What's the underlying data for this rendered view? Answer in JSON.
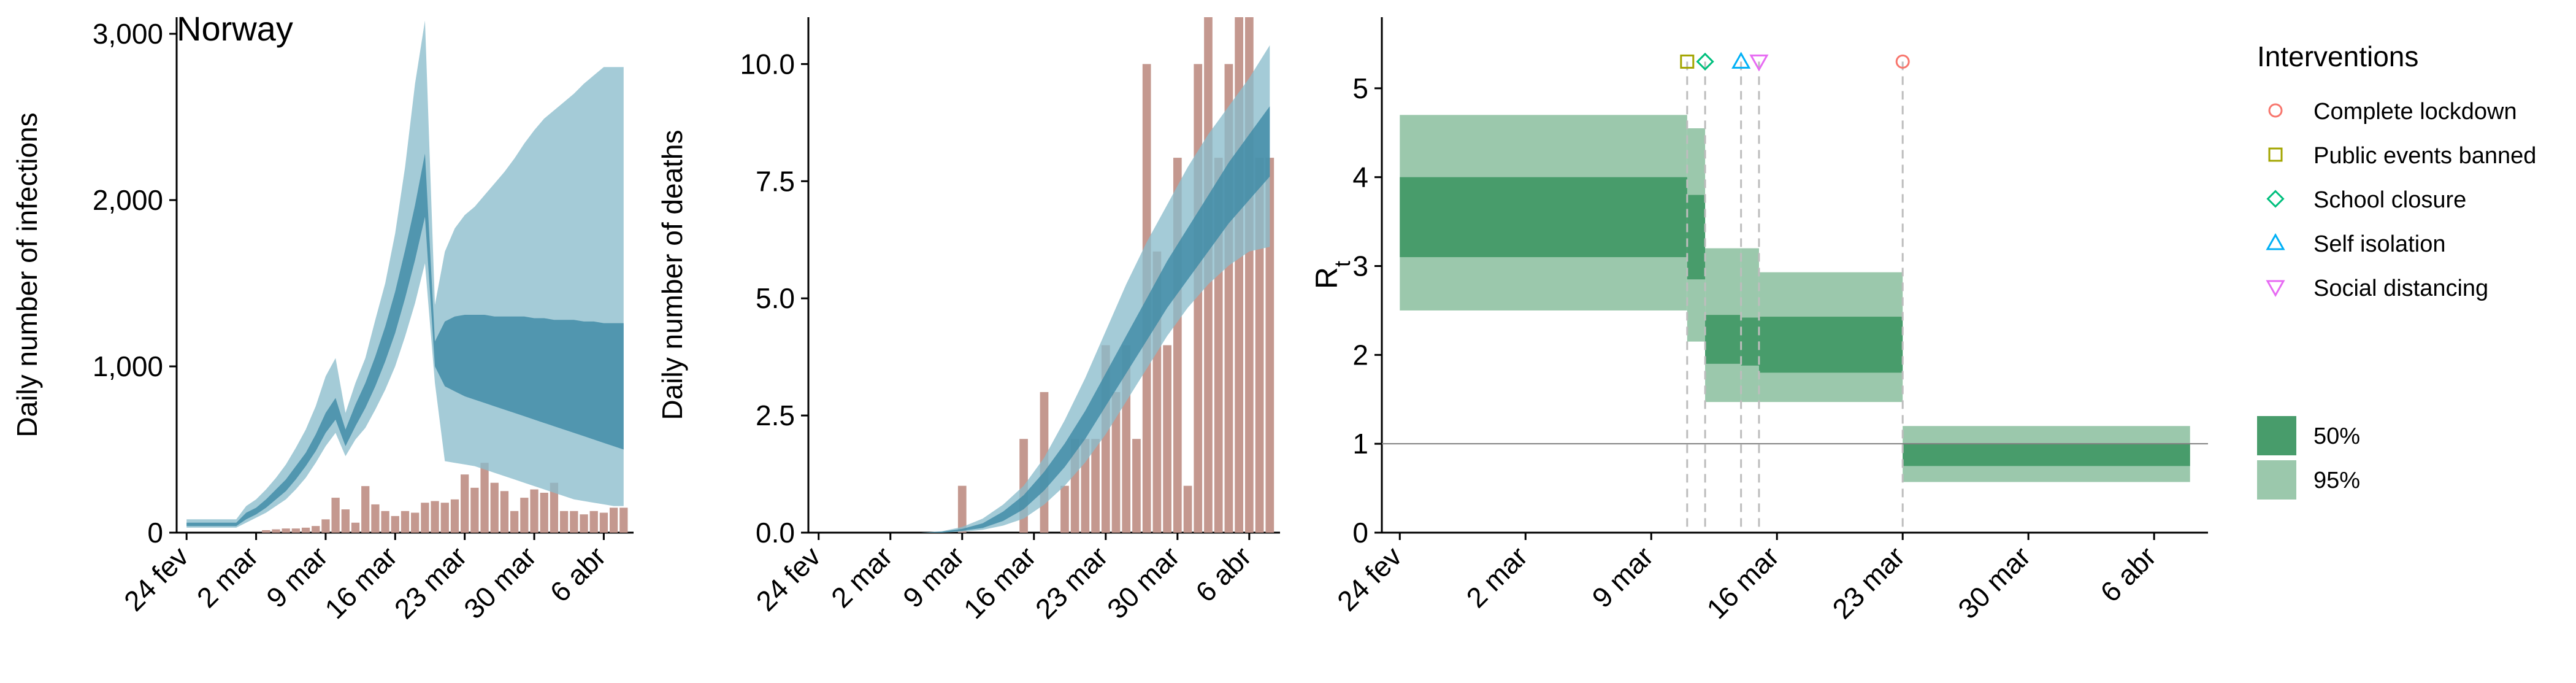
{
  "title": "Norway",
  "x_tick_labels": [
    "24 fev",
    "2 mar",
    "9 mar",
    "16 mar",
    "23 mar",
    "30 mar",
    "6 abr"
  ],
  "colors": {
    "blue_band95": "#8bbccc",
    "blue_band50": "#3e8aa6",
    "blue_mean": "#2b7593",
    "bar": "#c4988f",
    "green_band95": "#9bc8ac",
    "green_band50": "#489c6b",
    "marker_complete_lockdown": "#f8766d",
    "marker_public_events": "#a3a500",
    "marker_school_closure": "#00bf7d",
    "marker_self_isolation": "#00b0f6",
    "marker_social_distancing": "#e76bf3",
    "axis": "#000000",
    "dashed": "#bdbdbd",
    "refline": "#7f7f7f"
  },
  "legend": {
    "title": "Interventions",
    "items": [
      {
        "label": "Complete lockdown",
        "icon": "circle-icon",
        "color_key": "marker_complete_lockdown"
      },
      {
        "label": "Public events banned",
        "icon": "square-icon",
        "color_key": "marker_public_events"
      },
      {
        "label": "School closure",
        "icon": "diamond-icon",
        "color_key": "marker_school_closure"
      },
      {
        "label": "Self isolation",
        "icon": "triangle-up-icon",
        "color_key": "marker_self_isolation"
      },
      {
        "label": "Social distancing",
        "icon": "triangle-down-icon",
        "color_key": "marker_social_distancing"
      }
    ],
    "bands": [
      {
        "label": "50%",
        "color_key": "green_band50"
      },
      {
        "label": "95%",
        "color_key": "green_band95"
      }
    ]
  },
  "chart_data": [
    {
      "id": "infections",
      "type": "area",
      "title": "Norway",
      "ylabel": "Daily number of infections",
      "xlabel": "",
      "x_range_days": [
        -1,
        45
      ],
      "ylim": [
        0,
        3100
      ],
      "y_ticks": [
        0,
        1000,
        2000,
        3000
      ],
      "y_tick_labels": [
        "0",
        "1,000",
        "2,000",
        "3,000"
      ],
      "x_day_index_note_free": true,
      "bars": {
        "days": [
          8,
          9,
          10,
          11,
          12,
          13,
          14,
          15,
          16,
          17,
          18,
          19,
          20,
          21,
          22,
          23,
          24,
          25,
          26,
          27,
          28,
          29,
          30,
          31,
          32,
          33,
          34,
          35,
          36,
          37,
          38,
          39,
          40,
          41,
          42,
          43,
          44
        ],
        "values": [
          15,
          20,
          25,
          25,
          30,
          40,
          80,
          210,
          140,
          60,
          280,
          170,
          130,
          100,
          130,
          120,
          180,
          190,
          180,
          200,
          350,
          270,
          420,
          300,
          250,
          130,
          210,
          260,
          240,
          300,
          130,
          130,
          110,
          130,
          120,
          150,
          150
        ]
      },
      "band95": {
        "days": [
          0,
          1,
          2,
          3,
          4,
          5,
          6,
          7,
          8,
          9,
          10,
          11,
          12,
          13,
          14,
          15,
          16,
          17,
          18,
          19,
          20,
          21,
          22,
          23,
          24,
          25,
          26,
          27,
          28,
          29,
          30,
          31,
          32,
          33,
          34,
          35,
          36,
          37,
          38,
          39,
          40,
          41,
          42,
          43,
          44
        ],
        "lower": [
          30,
          30,
          30,
          30,
          30,
          30,
          60,
          90,
          120,
          160,
          200,
          260,
          330,
          420,
          520,
          600,
          460,
          560,
          630,
          740,
          860,
          1000,
          1180,
          1380,
          1620,
          900,
          430,
          420,
          410,
          400,
          380,
          360,
          340,
          320,
          300,
          280,
          260,
          240,
          220,
          200,
          190,
          180,
          170,
          160,
          160
        ],
        "upper": [
          80,
          80,
          80,
          80,
          80,
          80,
          160,
          200,
          260,
          330,
          410,
          510,
          620,
          760,
          940,
          1050,
          720,
          900,
          1050,
          1280,
          1500,
          1800,
          2200,
          2700,
          3080,
          1370,
          1690,
          1830,
          1910,
          1960,
          2030,
          2100,
          2170,
          2250,
          2340,
          2420,
          2490,
          2540,
          2590,
          2640,
          2700,
          2750,
          2800,
          2800,
          2800
        ]
      },
      "band50": {
        "days": [
          0,
          1,
          2,
          3,
          4,
          5,
          6,
          7,
          8,
          9,
          10,
          11,
          12,
          13,
          14,
          15,
          16,
          17,
          18,
          19,
          20,
          21,
          22,
          23,
          24,
          25,
          26,
          27,
          28,
          29,
          30,
          31,
          32,
          33,
          34,
          35,
          36,
          37,
          38,
          39,
          40,
          41,
          42,
          43,
          44
        ],
        "lower": [
          40,
          40,
          40,
          40,
          40,
          40,
          80,
          110,
          150,
          200,
          250,
          320,
          400,
          490,
          600,
          680,
          520,
          640,
          750,
          880,
          1030,
          1200,
          1410,
          1640,
          1900,
          1000,
          880,
          850,
          820,
          800,
          780,
          760,
          740,
          720,
          700,
          680,
          660,
          640,
          620,
          600,
          580,
          560,
          540,
          520,
          500
        ],
        "upper": [
          60,
          60,
          60,
          60,
          60,
          60,
          120,
          150,
          200,
          260,
          320,
          400,
          480,
          590,
          720,
          810,
          620,
          770,
          900,
          1060,
          1240,
          1450,
          1700,
          1970,
          2280,
          1150,
          1270,
          1300,
          1310,
          1310,
          1310,
          1300,
          1300,
          1300,
          1300,
          1290,
          1290,
          1280,
          1280,
          1280,
          1270,
          1270,
          1260,
          1260,
          1260
        ]
      }
    },
    {
      "id": "deaths",
      "type": "area",
      "title": "",
      "ylabel": "Daily number of deaths",
      "xlabel": "",
      "x_range_days": [
        -1,
        45
      ],
      "ylim": [
        0,
        11
      ],
      "y_ticks": [
        0,
        2.5,
        5,
        7.5,
        10
      ],
      "y_tick_labels": [
        "0.0",
        "2.5",
        "5.0",
        "7.5",
        "10.0"
      ],
      "bars": {
        "days": [
          14,
          20,
          22,
          24,
          25,
          26,
          27,
          28,
          29,
          30,
          31,
          32,
          33,
          34,
          35,
          36,
          37,
          38,
          39,
          40,
          41,
          42,
          43,
          44
        ],
        "values": [
          1,
          2,
          3,
          1,
          2,
          2,
          2,
          4,
          3,
          4,
          2,
          10,
          6,
          4,
          8,
          1,
          10,
          11,
          8,
          10,
          11,
          11,
          8,
          8
        ]
      },
      "band95": {
        "days": [
          0,
          2,
          4,
          6,
          8,
          10,
          12,
          14,
          16,
          18,
          20,
          22,
          24,
          26,
          28,
          30,
          32,
          34,
          36,
          38,
          40,
          42,
          44
        ],
        "lower": [
          0,
          0,
          0,
          0,
          0,
          0,
          0,
          0.02,
          0.06,
          0.15,
          0.3,
          0.6,
          1,
          1.5,
          2.1,
          2.8,
          3.5,
          4.2,
          4.8,
          5.3,
          5.7,
          6,
          6.1
        ],
        "upper": [
          0,
          0,
          0,
          0,
          0,
          0,
          0.03,
          0.12,
          0.3,
          0.6,
          1,
          1.6,
          2.4,
          3.3,
          4.3,
          5.3,
          6.2,
          7,
          7.8,
          8.5,
          9.1,
          9.7,
          10.4
        ]
      },
      "band50": {
        "days": [
          0,
          2,
          4,
          6,
          8,
          10,
          12,
          14,
          16,
          18,
          20,
          22,
          24,
          26,
          28,
          30,
          32,
          34,
          36,
          38,
          40,
          42,
          44
        ],
        "lower": [
          0,
          0,
          0,
          0,
          0,
          0,
          0,
          0.04,
          0.1,
          0.25,
          0.5,
          0.9,
          1.4,
          2,
          2.7,
          3.4,
          4.1,
          4.8,
          5.4,
          6,
          6.6,
          7.1,
          7.6
        ],
        "upper": [
          0,
          0,
          0,
          0,
          0,
          0,
          0.02,
          0.08,
          0.2,
          0.45,
          0.8,
          1.3,
          1.9,
          2.6,
          3.4,
          4.2,
          5,
          5.8,
          6.5,
          7.2,
          7.9,
          8.5,
          9.1
        ]
      }
    },
    {
      "id": "rt",
      "type": "area",
      "title": "",
      "ylabel": "R",
      "ylabel_subscript": "t",
      "xlabel": "",
      "x_range_days": [
        -1,
        45
      ],
      "ylim": [
        0,
        5.8
      ],
      "y_ticks": [
        0,
        1,
        2,
        3,
        4,
        5
      ],
      "y_tick_labels": [
        "0",
        "1",
        "2",
        "3",
        "4",
        "5"
      ],
      "reference_line": 1,
      "segments": [
        {
          "start": 0,
          "end": 16,
          "lo95": 2.5,
          "hi95": 4.7,
          "lo50": 3.1,
          "hi50": 4.0
        },
        {
          "start": 16,
          "end": 17,
          "lo95": 2.15,
          "hi95": 4.55,
          "lo50": 2.85,
          "hi50": 3.8
        },
        {
          "start": 17,
          "end": 19,
          "lo95": 1.47,
          "hi95": 3.2,
          "lo50": 1.9,
          "hi50": 2.45
        },
        {
          "start": 19,
          "end": 20,
          "lo95": 1.47,
          "hi95": 3.2,
          "lo50": 1.88,
          "hi50": 2.42
        },
        {
          "start": 20,
          "end": 28,
          "lo95": 1.47,
          "hi95": 2.93,
          "lo50": 1.8,
          "hi50": 2.43
        },
        {
          "start": 28,
          "end": 44,
          "lo95": 0.57,
          "hi95": 1.2,
          "lo50": 0.75,
          "hi50": 1.0
        }
      ],
      "interventions": [
        {
          "name": "Public events banned",
          "day": 16,
          "marker": "square"
        },
        {
          "name": "School closure",
          "day": 17,
          "marker": "diamond"
        },
        {
          "name": "Self isolation",
          "day": 19,
          "marker": "triangle-up"
        },
        {
          "name": "Social distancing",
          "day": 20,
          "marker": "triangle-down"
        },
        {
          "name": "Complete lockdown",
          "day": 28,
          "marker": "circle"
        }
      ]
    }
  ]
}
